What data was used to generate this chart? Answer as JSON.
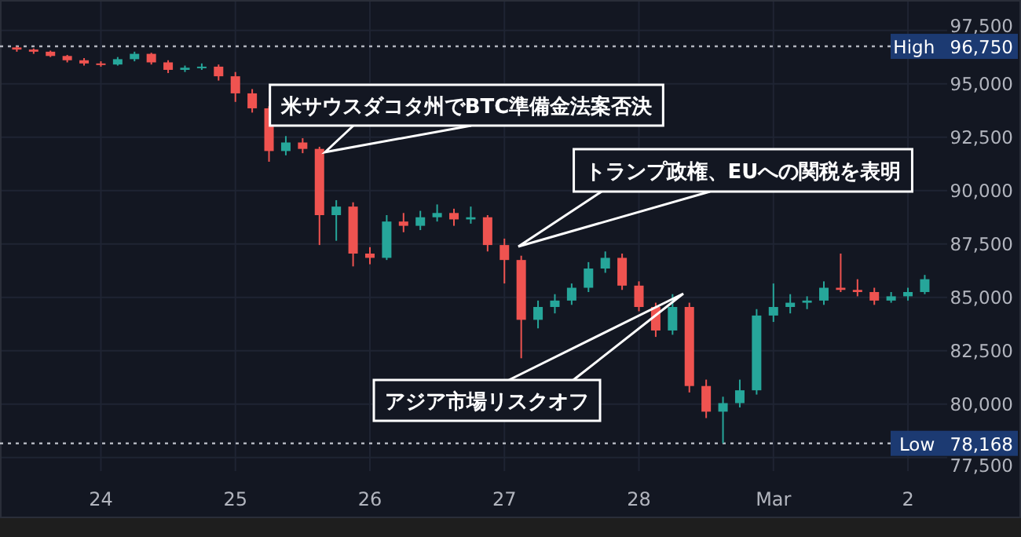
{
  "chart_data": {
    "type": "candlestick",
    "x": [
      "--02-23T09:00",
      "--02-23T12:00",
      "--02-23T15:00",
      "--02-23T18:00",
      "--02-23T21:00",
      "--02-24T00:00",
      "--02-24T03:00",
      "--02-24T06:00",
      "--02-24T09:00",
      "--02-24T12:00",
      "--02-24T15:00",
      "--02-24T18:00",
      "--02-24T21:00",
      "--02-25T00:00",
      "--02-25T03:00",
      "--02-25T06:00",
      "--02-25T09:00",
      "--02-25T12:00",
      "--02-25T15:00",
      "--02-25T18:00",
      "--02-25T21:00",
      "--02-26T00:00",
      "--02-26T03:00",
      "--02-26T06:00",
      "--02-26T09:00",
      "--02-26T12:00",
      "--02-26T15:00",
      "--02-26T18:00",
      "--02-26T21:00",
      "--02-27T00:00",
      "--02-27T03:00",
      "--02-27T06:00",
      "--02-27T09:00",
      "--02-27T12:00",
      "--02-27T15:00",
      "--02-27T18:00",
      "--02-27T21:00",
      "--02-28T00:00",
      "--02-28T03:00",
      "--02-28T06:00",
      "--02-28T09:00",
      "--02-28T12:00",
      "--02-28T15:00",
      "--02-28T18:00",
      "--02-28T21:00",
      "--03-01T00:00",
      "--03-01T03:00",
      "--03-01T06:00",
      "--03-01T09:00",
      "--03-01T12:00",
      "--03-01T15:00",
      "--03-01T18:00",
      "--03-01T21:00",
      "--03-02T00:00",
      "--03-02T03:00"
    ],
    "ohlc": [
      [
        96700,
        96750,
        96500,
        96600
      ],
      [
        96600,
        96650,
        96400,
        96500
      ],
      [
        96500,
        96550,
        96250,
        96300
      ],
      [
        96300,
        96350,
        96000,
        96100
      ],
      [
        96100,
        96200,
        95850,
        95950
      ],
      [
        95950,
        96050,
        95800,
        95900
      ],
      [
        95900,
        96250,
        95850,
        96150
      ],
      [
        96150,
        96500,
        96050,
        96400
      ],
      [
        96400,
        96450,
        95900,
        96000
      ],
      [
        96000,
        96100,
        95500,
        95650
      ],
      [
        95650,
        95850,
        95550,
        95750
      ],
      [
        95750,
        95950,
        95650,
        95800
      ],
      [
        95800,
        95900,
        95150,
        95350
      ],
      [
        95350,
        95550,
        94150,
        94550
      ],
      [
        94550,
        94750,
        93650,
        93850
      ],
      [
        93850,
        93950,
        91350,
        91850
      ],
      [
        91850,
        92550,
        91650,
        92250
      ],
      [
        92250,
        92450,
        91750,
        91950
      ],
      [
        91950,
        92050,
        87450,
        88850
      ],
      [
        88850,
        89550,
        87650,
        89250
      ],
      [
        89250,
        89450,
        86450,
        87050
      ],
      [
        87050,
        87350,
        86550,
        86850
      ],
      [
        86850,
        88850,
        86750,
        88550
      ],
      [
        88550,
        88950,
        88050,
        88350
      ],
      [
        88350,
        89050,
        88150,
        88750
      ],
      [
        88750,
        89350,
        88550,
        88950
      ],
      [
        88950,
        89150,
        88350,
        88650
      ],
      [
        88650,
        89250,
        88450,
        88750
      ],
      [
        88750,
        88850,
        87150,
        87450
      ],
      [
        87450,
        87750,
        85650,
        86750
      ],
      [
        86750,
        86950,
        82150,
        83950
      ],
      [
        83950,
        84850,
        83550,
        84550
      ],
      [
        84550,
        85150,
        84250,
        84850
      ],
      [
        84850,
        85650,
        84650,
        85450
      ],
      [
        85450,
        86650,
        85250,
        86350
      ],
      [
        86350,
        87150,
        86150,
        86850
      ],
      [
        86850,
        87050,
        85350,
        85550
      ],
      [
        85550,
        85750,
        84350,
        84550
      ],
      [
        84550,
        84750,
        83150,
        83450
      ],
      [
        83450,
        85150,
        83250,
        84550
      ],
      [
        84550,
        84750,
        80550,
        80850
      ],
      [
        80850,
        81150,
        79350,
        79650
      ],
      [
        79650,
        80350,
        78168,
        80050
      ],
      [
        80050,
        81150,
        79850,
        80650
      ],
      [
        80650,
        84450,
        80450,
        84150
      ],
      [
        84150,
        85650,
        83850,
        84550
      ],
      [
        84550,
        85150,
        84250,
        84750
      ],
      [
        84750,
        85050,
        84450,
        84850
      ],
      [
        84850,
        85750,
        84650,
        85450
      ],
      [
        85450,
        87050,
        85250,
        85350
      ],
      [
        85350,
        85850,
        85050,
        85250
      ],
      [
        85250,
        85450,
        84650,
        84850
      ],
      [
        84850,
        85250,
        84750,
        85050
      ],
      [
        85050,
        85450,
        84850,
        85250
      ],
      [
        85250,
        86050,
        85150,
        85850
      ]
    ],
    "colors": [
      "#ef5350",
      "#ef5350",
      "#ef5350",
      "#ef5350",
      "#ef5350",
      "#ef5350",
      "#26a69a",
      "#26a69a",
      "#ef5350",
      "#ef5350",
      "#26a69a",
      "#26a69a",
      "#ef5350",
      "#ef5350",
      "#ef5350",
      "#ef5350",
      "#26a69a",
      "#ef5350",
      "#ef5350",
      "#26a69a",
      "#ef5350",
      "#ef5350",
      "#26a69a",
      "#ef5350",
      "#26a69a",
      "#26a69a",
      "#ef5350",
      "#26a69a",
      "#ef5350",
      "#ef5350",
      "#ef5350",
      "#26a69a",
      "#26a69a",
      "#26a69a",
      "#26a69a",
      "#26a69a",
      "#ef5350",
      "#ef5350",
      "#ef5350",
      "#26a69a",
      "#ef5350",
      "#ef5350",
      "#26a69a",
      "#26a69a",
      "#26a69a",
      "#26a69a",
      "#26a69a",
      "#26a69a",
      "#26a69a",
      "#ef5350",
      "#ef5350",
      "#ef5350",
      "#26a69a",
      "#26a69a",
      "#26a69a"
    ],
    "xlim": [
      "--02-23T06:00",
      "--03-02T07:00"
    ],
    "xticks": [
      {
        "value": "--02-24",
        "label": "24"
      },
      {
        "value": "--02-25",
        "label": "25"
      },
      {
        "value": "--02-26",
        "label": "26"
      },
      {
        "value": "--02-27",
        "label": "27"
      },
      {
        "value": "--02-28",
        "label": "28"
      },
      {
        "value": "--03-01",
        "label": "Mar"
      },
      {
        "value": "--03-02",
        "label": "2"
      }
    ],
    "ylim": [
      76870,
      98920
    ],
    "yticks": [
      {
        "value": 77500,
        "label": "77,500"
      },
      {
        "value": 80000,
        "label": "80,000"
      },
      {
        "value": 82500,
        "label": "82,500"
      },
      {
        "value": 85000,
        "label": "85,000"
      },
      {
        "value": 87500,
        "label": "87,500"
      },
      {
        "value": 90000,
        "label": "90,000"
      },
      {
        "value": 92500,
        "label": "92,500"
      },
      {
        "value": 95000,
        "label": "95,000"
      },
      {
        "value": 97500,
        "label": "97,500"
      }
    ],
    "grid": true,
    "ref_lines": [
      {
        "axis": "y",
        "value": 96750,
        "label": "High 96,750",
        "line_style": "dotted",
        "color": "#b2b5be"
      },
      {
        "axis": "y",
        "value": 78168,
        "label": "Low 78,168",
        "line_style": "dotted",
        "color": "#b2b5be"
      }
    ],
    "annotations": [
      {
        "text": "米サウスダコタ州でBTC準備金法案否決",
        "x": "--02-25T16:00",
        "y": 91800
      },
      "トランプ政権、EUへの関税を表明",
      "アジア市場リスクオフ"
    ]
  }
}
